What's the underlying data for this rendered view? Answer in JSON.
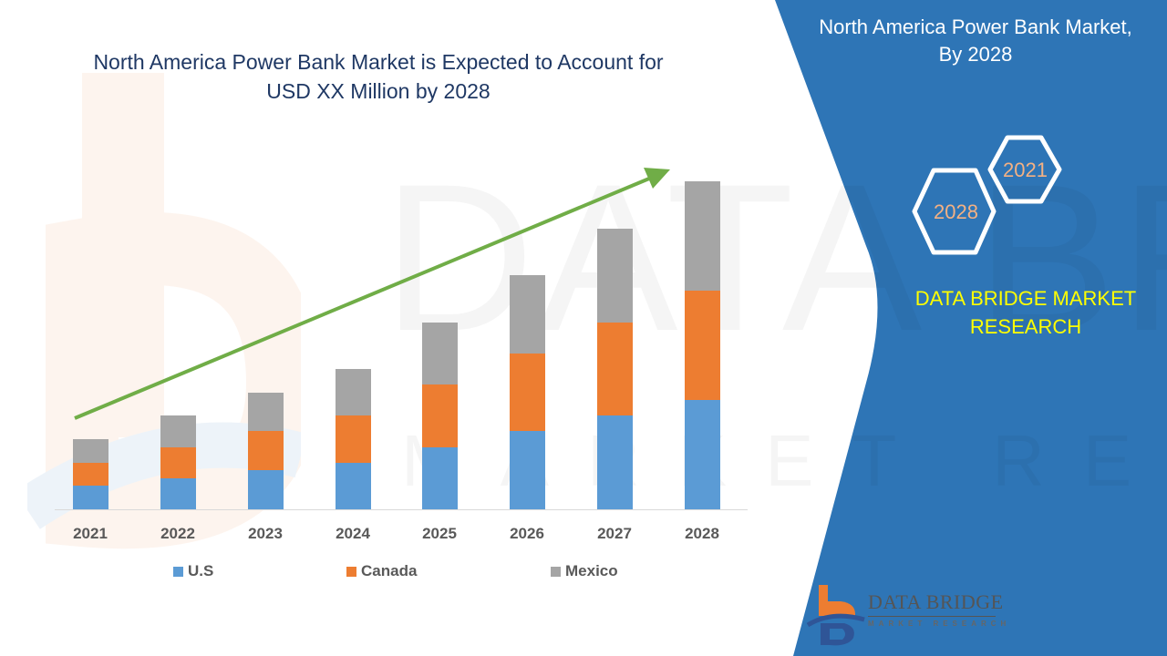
{
  "chart_title_line1": "North America Power Bank Market is Expected to Account for",
  "chart_title_line2": "USD XX Million by 2028",
  "side_panel": {
    "title_line1": "North America Power Bank Market,",
    "title_line2": "By 2028",
    "hex_years": [
      "2028",
      "2021"
    ],
    "brand_line1": "DATA BRIDGE MARKET",
    "brand_line2": "RESEARCH",
    "logo_word": "DATA BRIDGE",
    "logo_sub": "MARKET RESEARCH"
  },
  "colors": {
    "us": "#5b9bd5",
    "canada": "#ed7d31",
    "mexico": "#a5a5a5",
    "arrow": "#70ad47",
    "panel_blue": "#2e75b6",
    "title": "#1f3864",
    "brand_yellow": "#ffff00",
    "hex_text": "#f4b183"
  },
  "chart_data": {
    "type": "bar",
    "stacked": true,
    "title": "North America Power Bank Market is Expected to Account for USD XX Million by 2028",
    "xlabel": "",
    "ylabel": "",
    "categories": [
      "2021",
      "2022",
      "2023",
      "2024",
      "2025",
      "2026",
      "2027",
      "2028"
    ],
    "series": [
      {
        "name": "U.S",
        "values": [
          26,
          34,
          43,
          51,
          68,
          86,
          103,
          120
        ]
      },
      {
        "name": "Canada",
        "values": [
          25,
          34,
          43,
          52,
          69,
          85,
          102,
          120
        ]
      },
      {
        "name": "Mexico",
        "values": [
          26,
          35,
          42,
          51,
          68,
          86,
          103,
          120
        ]
      }
    ],
    "units_note": "Relative values (no y-axis shown); measured in pixel height",
    "ylim": [
      0,
      400
    ],
    "grid": false,
    "legend_position": "bottom",
    "annotations": [
      "Green upward trend arrow from 2021 to 2028"
    ]
  }
}
